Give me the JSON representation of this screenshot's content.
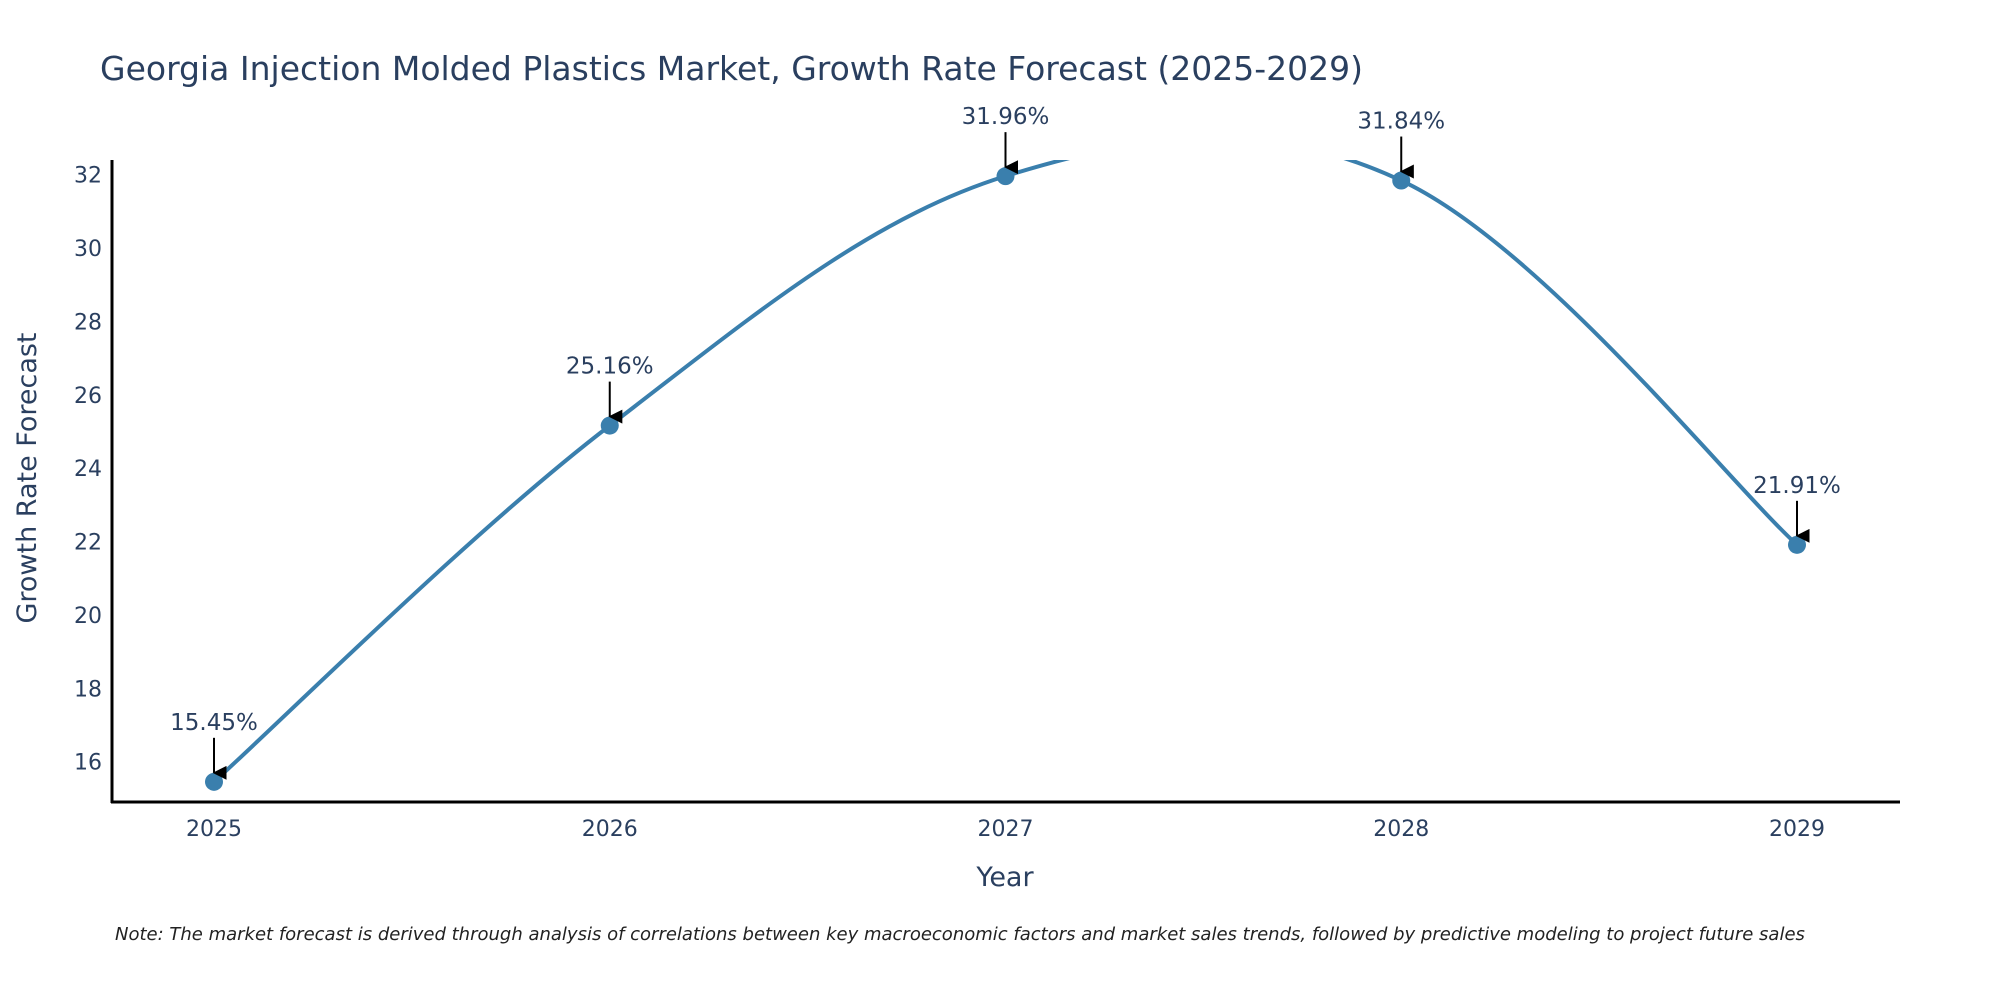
{
  "chart_data": {
    "type": "line",
    "title": "Georgia Injection Molded Plastics Market, Growth Rate Forecast (2025-2029)",
    "xlabel": "Year",
    "ylabel": "Growth Rate Forecast",
    "categories": [
      "2025",
      "2026",
      "2027",
      "2028",
      "2029"
    ],
    "series": [
      {
        "name": "Growth Rate Forecast",
        "values": [
          15.45,
          25.16,
          31.96,
          31.84,
          21.91
        ],
        "labels": [
          "15.45%",
          "25.16%",
          "31.96%",
          "31.84%",
          "21.91%"
        ]
      }
    ],
    "ylim": [
      14.9,
      32.4
    ],
    "yticks": [
      16,
      18,
      20,
      22,
      24,
      26,
      28,
      30,
      32
    ],
    "ytick_labels": [
      "16",
      "18",
      "20",
      "22",
      "24",
      "26",
      "28",
      "30",
      "32"
    ],
    "line_shape": "spline",
    "grid": false,
    "line_color": "#3a7fad",
    "marker_color": "#3a7fad",
    "axis_color": "#000000",
    "note": "Note: The market forecast is derived through analysis of correlations between key macroeconomic factors and market sales trends, followed by predictive modeling to project future sales"
  }
}
